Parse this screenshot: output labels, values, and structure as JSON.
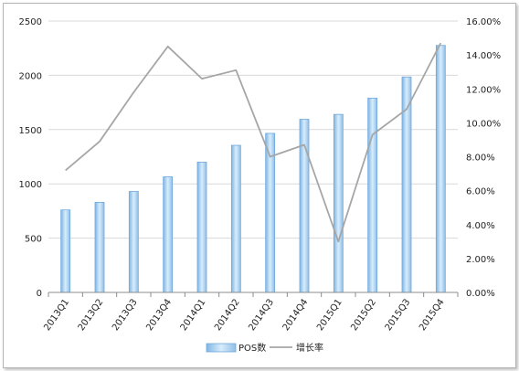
{
  "chart_data": {
    "type": "bar",
    "categories": [
      "2013Q1",
      "2013Q2",
      "2013Q3",
      "2013Q4",
      "2014Q1",
      "2014Q2",
      "2014Q3",
      "2014Q4",
      "2015Q1",
      "2015Q2",
      "2015Q3",
      "2015Q4"
    ],
    "series": [
      {
        "name": "POS数",
        "type": "bar",
        "axis": "left",
        "color": "#a9d0f0",
        "values": [
          760,
          830,
          930,
          1065,
          1200,
          1355,
          1465,
          1595,
          1640,
          1790,
          1985,
          2275
        ]
      },
      {
        "name": "增长率",
        "type": "line",
        "axis": "right",
        "color": "#a6a6a6",
        "values": [
          0.072,
          0.089,
          0.118,
          0.145,
          0.126,
          0.131,
          0.08,
          0.087,
          0.03,
          0.093,
          0.108,
          0.147
        ]
      }
    ],
    "y_left": {
      "range": [
        0,
        2500
      ],
      "ticks": [
        "0",
        "500",
        "1000",
        "1500",
        "2000",
        "2500"
      ]
    },
    "y_right": {
      "range": [
        0,
        0.16
      ],
      "ticks": [
        "0.00%",
        "2.00%",
        "4.00%",
        "6.00%",
        "8.00%",
        "10.00%",
        "12.00%",
        "14.00%",
        "16.00%"
      ]
    },
    "grid": "horizontal",
    "legend_position": "bottom"
  }
}
